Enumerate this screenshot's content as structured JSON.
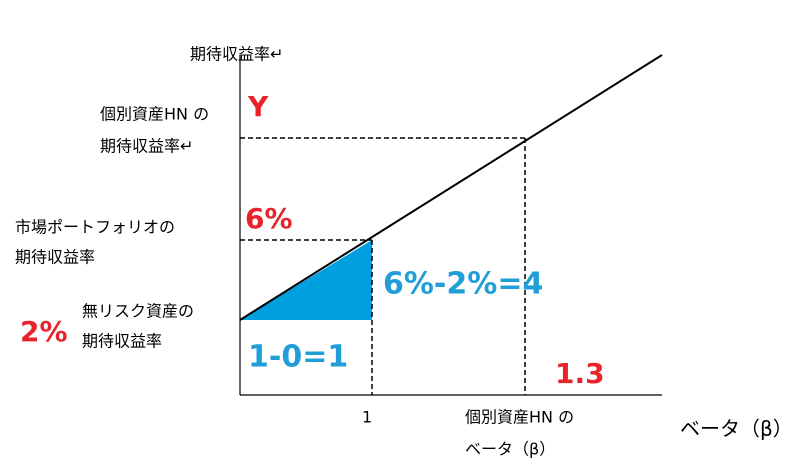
{
  "axes": {
    "y_title": "期待収益率↵",
    "x_title": "ベータ（β）"
  },
  "individual": {
    "label_line1": "個別資産HN の",
    "label_line2": "期待収益率↵",
    "return_value": "Y",
    "beta_value": "1.3",
    "beta_line1": "個別資産HN の",
    "beta_line2": "ベータ（β）"
  },
  "market": {
    "label_line1": "市場ポートフォリオの",
    "label_line2": "期待収益率",
    "return_value": "6%",
    "beta_value": "1"
  },
  "risk_free": {
    "label_line1": "無リスク資産の",
    "label_line2": "期待収益率",
    "return_value": "2%"
  },
  "annotations": {
    "rise": "6%-2%=4",
    "run": "1-0=1"
  }
}
